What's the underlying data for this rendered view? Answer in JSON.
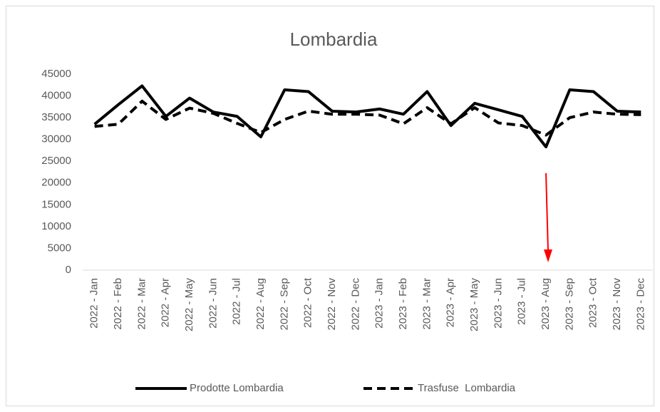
{
  "chart_data": {
    "type": "line",
    "title": "Lombardia",
    "categories": [
      "2022 - Jan",
      "2022 - Feb",
      "2022 - Mar",
      "2022 - Apr",
      "2022 - May",
      "2022 - Jun",
      "2022 - Jul",
      "2022 - Aug",
      "2022 - Sep",
      "2022 - Oct",
      "2022 - Nov",
      "2022 - Dec",
      "2023 - Jan",
      "2023 - Feb",
      "2023 - Mar",
      "2023 - Apr",
      "2023 - May",
      "2023 - Jun",
      "2023 - Jul",
      "2023 - Aug",
      "2023 - Sep",
      "2023 - Oct",
      "2023 - Nov",
      "2023 - Dec"
    ],
    "series": [
      {
        "name": "Prodotte Lombardia",
        "color": "#000000",
        "dash": false,
        "values": [
          33500,
          38000,
          42300,
          35300,
          39500,
          36300,
          35300,
          30600,
          41400,
          41000,
          36500,
          36300,
          37000,
          35800,
          41000,
          33200,
          38300,
          36800,
          35300,
          28300,
          41400,
          41000,
          36500,
          36300
        ]
      },
      {
        "name": "Trasfuse  Lombardia",
        "color": "#000000",
        "dash": true,
        "values": [
          33000,
          33500,
          38800,
          34600,
          37200,
          36000,
          33700,
          31600,
          34600,
          36500,
          35800,
          35800,
          35600,
          33600,
          37300,
          33600,
          37300,
          33800,
          33200,
          31000,
          35000,
          36300,
          35800,
          35700
        ]
      }
    ],
    "ylim": [
      0,
      45000
    ],
    "yticks": [
      0,
      5000,
      10000,
      15000,
      20000,
      25000,
      30000,
      35000,
      40000,
      45000
    ],
    "grid": false,
    "legend": "bottom"
  }
}
